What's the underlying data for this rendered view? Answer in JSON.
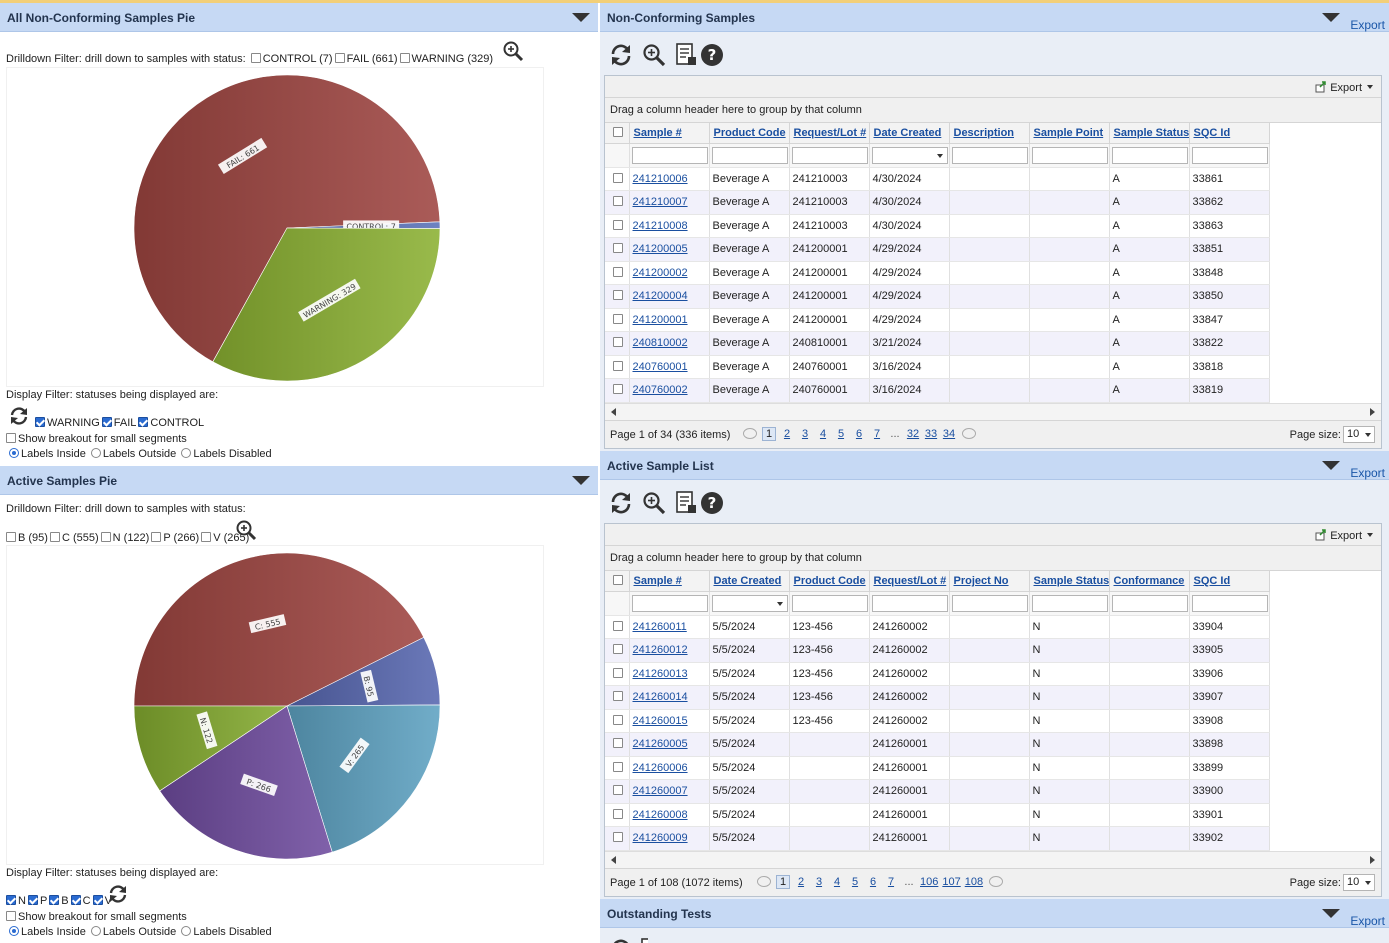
{
  "left": {
    "nc_pie": {
      "title": "All Non-Conforming Samples Pie",
      "drilldown_label": "Drilldown Filter: drill down to samples with status:",
      "drilldown_options": [
        "CONTROL (7)",
        "FAIL (661)",
        "WARNING (329)"
      ],
      "display_filter_label": "Display Filter: statuses being displayed are:",
      "display_options": [
        "WARNING",
        "FAIL",
        "CONTROL"
      ],
      "breakout_label": "Show breakout for small segments",
      "label_modes": [
        "Labels Inside",
        "Labels Outside",
        "Labels Disabled"
      ]
    },
    "active_pie": {
      "title": "Active Samples Pie",
      "drilldown_label": "Drilldown Filter: drill down to samples with status:",
      "drilldown_options": [
        "B (95)",
        "C (555)",
        "N (122)",
        "P (266)",
        "V (265)"
      ],
      "display_filter_label": "Display Filter: statuses being displayed are:",
      "display_options": [
        "N",
        "P",
        "B",
        "C",
        "V"
      ],
      "breakout_label": "Show breakout for small segments",
      "label_modes": [
        "Labels Inside",
        "Labels Outside",
        "Labels Disabled"
      ]
    }
  },
  "chart_data": [
    {
      "type": "pie",
      "slices": [
        {
          "label": "FAIL",
          "value": 661,
          "text": "FAIL: 661",
          "color": "#9e4541"
        },
        {
          "label": "CONTROL",
          "value": 7,
          "text": "CONTROL: 7",
          "color": "#5a72b8"
        },
        {
          "label": "WARNING",
          "value": 329,
          "text": "WARNING: 329",
          "color": "#8bb132"
        }
      ]
    },
    {
      "type": "pie",
      "slices": [
        {
          "label": "C",
          "value": 555,
          "text": "C: 555",
          "color": "#9e4541"
        },
        {
          "label": "B",
          "value": 95,
          "text": "B: 95",
          "color": "#5767b0"
        },
        {
          "label": "V",
          "value": 265,
          "text": "V: 265",
          "color": "#5ea2c2"
        },
        {
          "label": "P",
          "value": 266,
          "text": "P: 266",
          "color": "#6f4c9e"
        },
        {
          "label": "N",
          "value": 122,
          "text": "N: 122",
          "color": "#84ab2f"
        }
      ]
    }
  ],
  "right": {
    "nc_samples": {
      "title": "Non-Conforming Samples",
      "export_label": "Export",
      "grid_export": "Export",
      "group_hint": "Drag a column header here to group by that column",
      "columns": [
        "Sample #",
        "Product Code",
        "Request/Lot #",
        "Date Created",
        "Description",
        "Sample Point",
        "Sample Status",
        "SQC Id"
      ],
      "rows": [
        [
          "241210006",
          "Beverage A",
          "241210003",
          "4/30/2024",
          "",
          "",
          "A",
          "33861"
        ],
        [
          "241210007",
          "Beverage A",
          "241210003",
          "4/30/2024",
          "",
          "",
          "A",
          "33862"
        ],
        [
          "241210008",
          "Beverage A",
          "241210003",
          "4/30/2024",
          "",
          "",
          "A",
          "33863"
        ],
        [
          "241200005",
          "Beverage A",
          "241200001",
          "4/29/2024",
          "",
          "",
          "A",
          "33851"
        ],
        [
          "241200002",
          "Beverage A",
          "241200001",
          "4/29/2024",
          "",
          "",
          "A",
          "33848"
        ],
        [
          "241200004",
          "Beverage A",
          "241200001",
          "4/29/2024",
          "",
          "",
          "A",
          "33850"
        ],
        [
          "241200001",
          "Beverage A",
          "241200001",
          "4/29/2024",
          "",
          "",
          "A",
          "33847"
        ],
        [
          "240810002",
          "Beverage A",
          "240810001",
          "3/21/2024",
          "",
          "",
          "A",
          "33822"
        ],
        [
          "240760001",
          "Beverage A",
          "240760001",
          "3/16/2024",
          "",
          "",
          "A",
          "33818"
        ],
        [
          "240760002",
          "Beverage A",
          "240760001",
          "3/16/2024",
          "",
          "",
          "A",
          "33819"
        ]
      ],
      "page_info": "Page 1 of 34 (336 items)",
      "pages": [
        "1",
        "2",
        "3",
        "4",
        "5",
        "6",
        "7",
        "...",
        "32",
        "33",
        "34"
      ],
      "page_size_label": "Page size:",
      "page_size": "10"
    },
    "active_list": {
      "title": "Active Sample List",
      "export_label": "Export",
      "grid_export": "Export",
      "group_hint": "Drag a column header here to group by that column",
      "columns": [
        "Sample #",
        "Date Created",
        "Product Code",
        "Request/Lot #",
        "Project No",
        "Sample Status",
        "Conformance",
        "SQC Id"
      ],
      "rows": [
        [
          "241260011",
          "5/5/2024",
          "123-456",
          "241260002",
          "",
          "N",
          "",
          "33904"
        ],
        [
          "241260012",
          "5/5/2024",
          "123-456",
          "241260002",
          "",
          "N",
          "",
          "33905"
        ],
        [
          "241260013",
          "5/5/2024",
          "123-456",
          "241260002",
          "",
          "N",
          "",
          "33906"
        ],
        [
          "241260014",
          "5/5/2024",
          "123-456",
          "241260002",
          "",
          "N",
          "",
          "33907"
        ],
        [
          "241260015",
          "5/5/2024",
          "123-456",
          "241260002",
          "",
          "N",
          "",
          "33908"
        ],
        [
          "241260005",
          "5/5/2024",
          "",
          "241260001",
          "",
          "N",
          "",
          "33898"
        ],
        [
          "241260006",
          "5/5/2024",
          "",
          "241260001",
          "",
          "N",
          "",
          "33899"
        ],
        [
          "241260007",
          "5/5/2024",
          "",
          "241260001",
          "",
          "N",
          "",
          "33900"
        ],
        [
          "241260008",
          "5/5/2024",
          "",
          "241260001",
          "",
          "N",
          "",
          "33901"
        ],
        [
          "241260009",
          "5/5/2024",
          "",
          "241260001",
          "",
          "N",
          "",
          "33902"
        ]
      ],
      "page_info": "Page 1 of 108 (1072 items)",
      "pages": [
        "1",
        "2",
        "3",
        "4",
        "5",
        "6",
        "7",
        "...",
        "106",
        "107",
        "108"
      ],
      "page_size_label": "Page size:",
      "page_size": "10"
    },
    "outstanding": {
      "title": "Outstanding Tests",
      "export_label": "Export"
    }
  },
  "icons": {
    "refresh": "refresh-icon",
    "zoom": "magnifier-icon",
    "report": "report-icon",
    "help": "help-icon",
    "export": "export-icon"
  },
  "colors": {
    "header_bg": "#c6d9f4",
    "link": "#1a4fa0",
    "alt_row": "#f2f1fb"
  }
}
